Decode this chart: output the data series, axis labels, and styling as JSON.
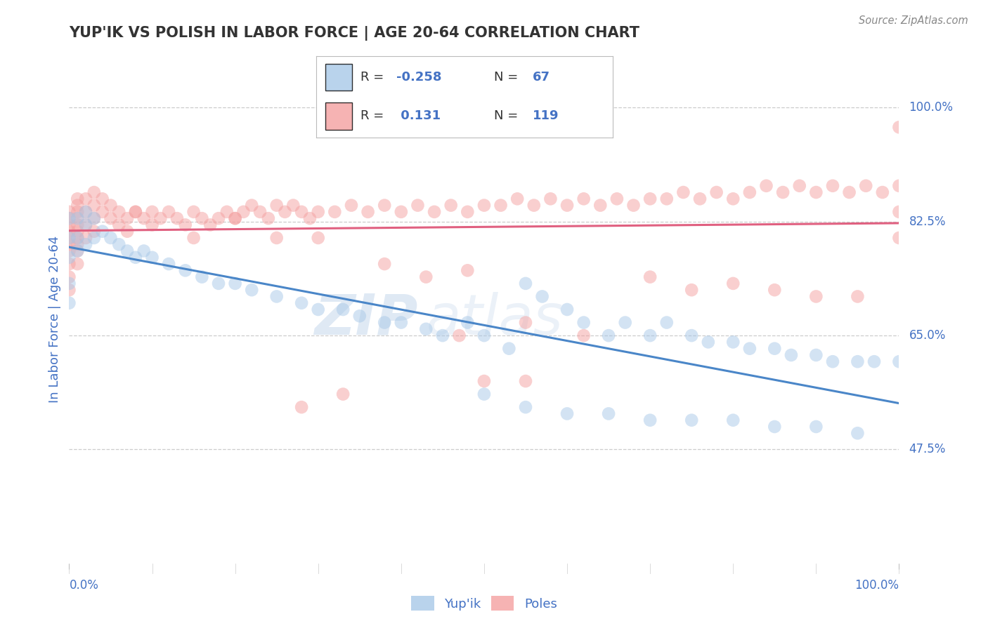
{
  "title": "YUP'IK VS POLISH IN LABOR FORCE | AGE 20-64 CORRELATION CHART",
  "source_text": "Source: ZipAtlas.com",
  "ylabel": "In Labor Force | Age 20-64",
  "xlim": [
    0.0,
    1.0
  ],
  "ylim": [
    0.3,
    1.05
  ],
  "yticks": [
    0.475,
    0.65,
    0.825,
    1.0
  ],
  "ytick_labels": [
    "47.5%",
    "65.0%",
    "82.5%",
    "100.0%"
  ],
  "xtick_left_label": "0.0%",
  "xtick_right_label": "100.0%",
  "yupik_R": -0.258,
  "yupik_N": 67,
  "poles_R": 0.131,
  "poles_N": 119,
  "legend_entries": [
    "Yup'ik",
    "Poles"
  ],
  "watermark_ZIP": "ZIP",
  "watermark_atlas": "atlas",
  "background_color": "#ffffff",
  "scatter_alpha": 0.5,
  "yupik_color": "#a8c8e8",
  "poles_color": "#f4a0a0",
  "yupik_line_color": "#4a86c8",
  "poles_line_color": "#e06080",
  "grid_color": "#cccccc",
  "title_color": "#333333",
  "axis_label_color": "#4472c4",
  "tick_label_color": "#4472c4",
  "legend_r_color": "#4472c4",
  "legend_n_color": "#4472c4",
  "source_color": "#888888",
  "yupik_scatter_x": [
    0.02,
    0.02,
    0.03,
    0.04,
    0.05,
    0.06,
    0.07,
    0.08,
    0.09,
    0.1,
    0.12,
    0.14,
    0.16,
    0.18,
    0.2,
    0.22,
    0.25,
    0.28,
    0.3,
    0.33,
    0.35,
    0.38,
    0.4,
    0.43,
    0.45,
    0.48,
    0.5,
    0.53,
    0.55,
    0.57,
    0.6,
    0.62,
    0.65,
    0.67,
    0.7,
    0.72,
    0.75,
    0.77,
    0.8,
    0.82,
    0.85,
    0.87,
    0.9,
    0.92,
    0.95,
    0.97,
    1.0,
    0.0,
    0.0,
    0.0,
    0.0,
    0.0,
    0.01,
    0.01,
    0.01,
    0.02,
    0.03,
    0.5,
    0.55,
    0.6,
    0.65,
    0.7,
    0.75,
    0.8,
    0.85,
    0.9,
    0.95
  ],
  "yupik_scatter_y": [
    0.82,
    0.79,
    0.8,
    0.81,
    0.8,
    0.79,
    0.78,
    0.77,
    0.78,
    0.77,
    0.76,
    0.75,
    0.74,
    0.73,
    0.73,
    0.72,
    0.71,
    0.7,
    0.69,
    0.69,
    0.68,
    0.67,
    0.67,
    0.66,
    0.65,
    0.67,
    0.65,
    0.63,
    0.73,
    0.71,
    0.69,
    0.67,
    0.65,
    0.67,
    0.65,
    0.67,
    0.65,
    0.64,
    0.64,
    0.63,
    0.63,
    0.62,
    0.62,
    0.61,
    0.61,
    0.61,
    0.61,
    0.83,
    0.8,
    0.77,
    0.73,
    0.7,
    0.83,
    0.8,
    0.78,
    0.84,
    0.83,
    0.56,
    0.54,
    0.53,
    0.53,
    0.52,
    0.52,
    0.52,
    0.51,
    0.51,
    0.5
  ],
  "poles_scatter_x": [
    0.0,
    0.0,
    0.0,
    0.0,
    0.0,
    0.0,
    0.0,
    0.0,
    0.0,
    0.0,
    0.01,
    0.01,
    0.01,
    0.01,
    0.01,
    0.01,
    0.01,
    0.01,
    0.01,
    0.01,
    0.02,
    0.02,
    0.02,
    0.02,
    0.03,
    0.03,
    0.03,
    0.03,
    0.04,
    0.04,
    0.05,
    0.05,
    0.06,
    0.06,
    0.07,
    0.07,
    0.08,
    0.09,
    0.1,
    0.1,
    0.11,
    0.12,
    0.13,
    0.14,
    0.15,
    0.16,
    0.17,
    0.18,
    0.19,
    0.2,
    0.21,
    0.22,
    0.23,
    0.24,
    0.25,
    0.26,
    0.27,
    0.28,
    0.29,
    0.3,
    0.32,
    0.34,
    0.36,
    0.38,
    0.4,
    0.42,
    0.44,
    0.46,
    0.48,
    0.5,
    0.52,
    0.54,
    0.56,
    0.58,
    0.6,
    0.62,
    0.64,
    0.66,
    0.68,
    0.7,
    0.72,
    0.74,
    0.76,
    0.78,
    0.8,
    0.82,
    0.84,
    0.86,
    0.88,
    0.9,
    0.92,
    0.94,
    0.96,
    0.98,
    1.0,
    0.28,
    0.33,
    0.47,
    0.5,
    0.55,
    0.08,
    0.15,
    0.2,
    0.25,
    0.3,
    0.38,
    0.43,
    0.48,
    0.55,
    0.62,
    0.7,
    0.75,
    0.8,
    0.85,
    0.9,
    0.95,
    1.0,
    1.0,
    1.0
  ],
  "poles_scatter_y": [
    0.84,
    0.82,
    0.8,
    0.78,
    0.76,
    0.74,
    0.72,
    0.83,
    0.81,
    0.79,
    0.86,
    0.84,
    0.82,
    0.8,
    0.78,
    0.76,
    0.85,
    0.83,
    0.81,
    0.79,
    0.86,
    0.84,
    0.82,
    0.8,
    0.87,
    0.85,
    0.83,
    0.81,
    0.86,
    0.84,
    0.85,
    0.83,
    0.84,
    0.82,
    0.83,
    0.81,
    0.84,
    0.83,
    0.84,
    0.82,
    0.83,
    0.84,
    0.83,
    0.82,
    0.84,
    0.83,
    0.82,
    0.83,
    0.84,
    0.83,
    0.84,
    0.85,
    0.84,
    0.83,
    0.85,
    0.84,
    0.85,
    0.84,
    0.83,
    0.84,
    0.84,
    0.85,
    0.84,
    0.85,
    0.84,
    0.85,
    0.84,
    0.85,
    0.84,
    0.85,
    0.85,
    0.86,
    0.85,
    0.86,
    0.85,
    0.86,
    0.85,
    0.86,
    0.85,
    0.86,
    0.86,
    0.87,
    0.86,
    0.87,
    0.86,
    0.87,
    0.88,
    0.87,
    0.88,
    0.87,
    0.88,
    0.87,
    0.88,
    0.87,
    0.88,
    0.54,
    0.56,
    0.65,
    0.58,
    0.58,
    0.84,
    0.8,
    0.83,
    0.8,
    0.8,
    0.76,
    0.74,
    0.75,
    0.67,
    0.65,
    0.74,
    0.72,
    0.73,
    0.72,
    0.71,
    0.71,
    0.97,
    0.84,
    0.8
  ]
}
